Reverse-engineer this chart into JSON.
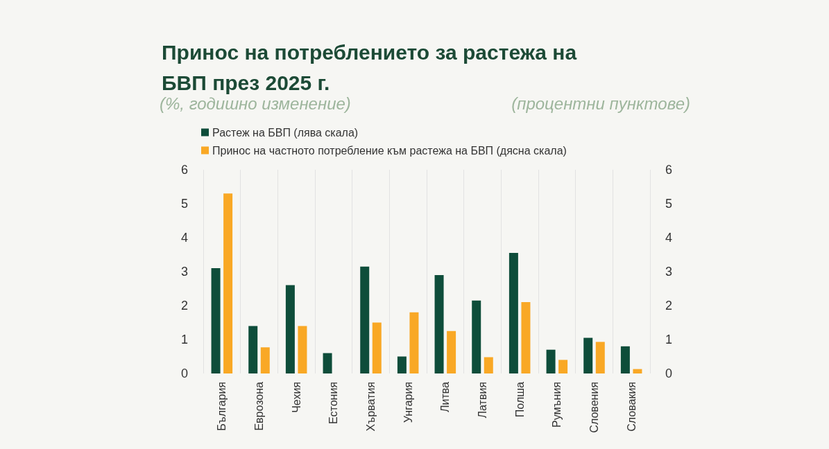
{
  "chart_data": {
    "type": "bar",
    "title": "Принос на потреблението за растежа на\nБВП през 2025 г.",
    "ylabel": "(%, годишно изменение)",
    "y2label": "(процентни пунктове)",
    "categories": [
      "България",
      "Еврозона",
      "Чехия",
      "Естония",
      "Хърватия",
      "Унгария",
      "Литва",
      "Латвия",
      "Полша",
      "Румъния",
      "Словения",
      "Словакия"
    ],
    "series": [
      {
        "name": "Растеж на БВП (лява скала)",
        "color": "#0e4d3a",
        "values": [
          3.1,
          1.4,
          2.6,
          0.6,
          3.15,
          0.5,
          2.9,
          2.15,
          3.55,
          0.7,
          1.05,
          0.8
        ]
      },
      {
        "name": "Принос на частното потребление към растежа на БВП (дясна скала)",
        "color": "#f9a825",
        "axis": "y2",
        "values": [
          5.3,
          0.77,
          1.4,
          0.0,
          1.5,
          1.8,
          1.25,
          0.48,
          2.1,
          0.4,
          0.93,
          0.13
        ]
      }
    ],
    "ylim": [
      0,
      6
    ],
    "yticks": [
      0,
      1,
      2,
      3,
      4,
      5,
      6
    ],
    "y2lim": [
      0,
      6
    ],
    "y2ticks": [
      0,
      1,
      2,
      3,
      4,
      5,
      6
    ],
    "grid": "x",
    "legend": "top left"
  }
}
